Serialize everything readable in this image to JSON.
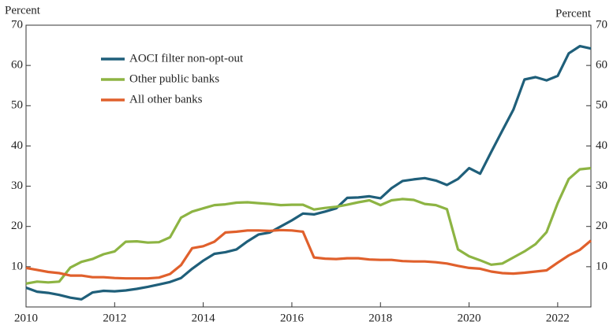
{
  "chart_data": {
    "type": "line",
    "y_label": "Percent",
    "y2_label": "Percent",
    "x": [
      2010,
      2010.25,
      2010.5,
      2010.75,
      2011,
      2011.25,
      2011.5,
      2011.75,
      2012,
      2012.25,
      2012.5,
      2012.75,
      2013,
      2013.25,
      2013.5,
      2013.75,
      2014,
      2014.25,
      2014.5,
      2014.75,
      2015,
      2015.25,
      2015.5,
      2015.75,
      2016,
      2016.25,
      2016.5,
      2016.75,
      2017,
      2017.25,
      2017.5,
      2017.75,
      2018,
      2018.25,
      2018.5,
      2018.75,
      2019,
      2019.25,
      2019.5,
      2019.75,
      2020,
      2020.25,
      2020.5,
      2020.75,
      2021,
      2021.25,
      2021.5,
      2021.75,
      2022,
      2022.25,
      2022.5,
      2022.75
    ],
    "series": [
      {
        "name": "AOCI filter non-opt-out",
        "color": "#1f5f7a",
        "values": [
          4.8,
          3.8,
          3.5,
          3.0,
          2.3,
          1.9,
          3.6,
          4.0,
          3.9,
          4.1,
          4.5,
          5.0,
          5.6,
          6.2,
          7.2,
          9.5,
          11.5,
          13.2,
          13.6,
          14.3,
          16.3,
          18.0,
          18.5,
          20.0,
          21.5,
          23.2,
          23.0,
          23.7,
          24.5,
          27.1,
          27.2,
          27.5,
          27.0,
          29.5,
          31.3,
          31.7,
          32.0,
          31.4,
          30.3,
          31.8,
          34.5,
          33.1,
          38.5,
          43.8,
          49.0,
          56.5,
          57.1,
          56.3,
          57.4,
          63.0,
          64.8,
          64.2
        ]
      },
      {
        "name": "Other public banks",
        "color": "#8db443",
        "values": [
          5.8,
          6.3,
          6.1,
          6.3,
          9.8,
          11.2,
          11.9,
          13.1,
          13.8,
          16.2,
          16.3,
          16.0,
          16.1,
          17.3,
          22.2,
          23.7,
          24.5,
          25.3,
          25.5,
          25.9,
          26.0,
          25.8,
          25.6,
          25.3,
          25.4,
          25.4,
          24.2,
          24.6,
          24.9,
          25.4,
          26.0,
          26.5,
          25.3,
          26.5,
          26.8,
          26.6,
          25.6,
          25.3,
          24.3,
          14.3,
          12.6,
          11.6,
          10.5,
          10.8,
          12.3,
          13.8,
          15.6,
          18.6,
          25.8,
          31.8,
          34.2,
          34.5
        ]
      },
      {
        "name": "All other banks",
        "color": "#e0602c",
        "values": [
          9.7,
          9.2,
          8.7,
          8.4,
          7.8,
          7.8,
          7.4,
          7.4,
          7.2,
          7.1,
          7.1,
          7.1,
          7.3,
          8.2,
          10.4,
          14.6,
          15.1,
          16.2,
          18.5,
          18.7,
          19.0,
          19.0,
          18.9,
          19.1,
          19.0,
          18.7,
          12.3,
          12.0,
          11.9,
          12.1,
          12.1,
          11.8,
          11.7,
          11.7,
          11.4,
          11.3,
          11.3,
          11.1,
          10.8,
          10.2,
          9.7,
          9.5,
          8.8,
          8.4,
          8.3,
          8.5,
          8.8,
          9.1,
          11.0,
          12.8,
          14.2,
          16.5
        ]
      }
    ],
    "xlim": [
      2010,
      2022.75
    ],
    "xticks": [
      2010,
      2012,
      2014,
      2016,
      2018,
      2020,
      2022
    ],
    "ylim": [
      0,
      70
    ],
    "yticks": [
      10,
      20,
      30,
      40,
      50,
      60,
      70
    ],
    "legend": "upper-left"
  }
}
